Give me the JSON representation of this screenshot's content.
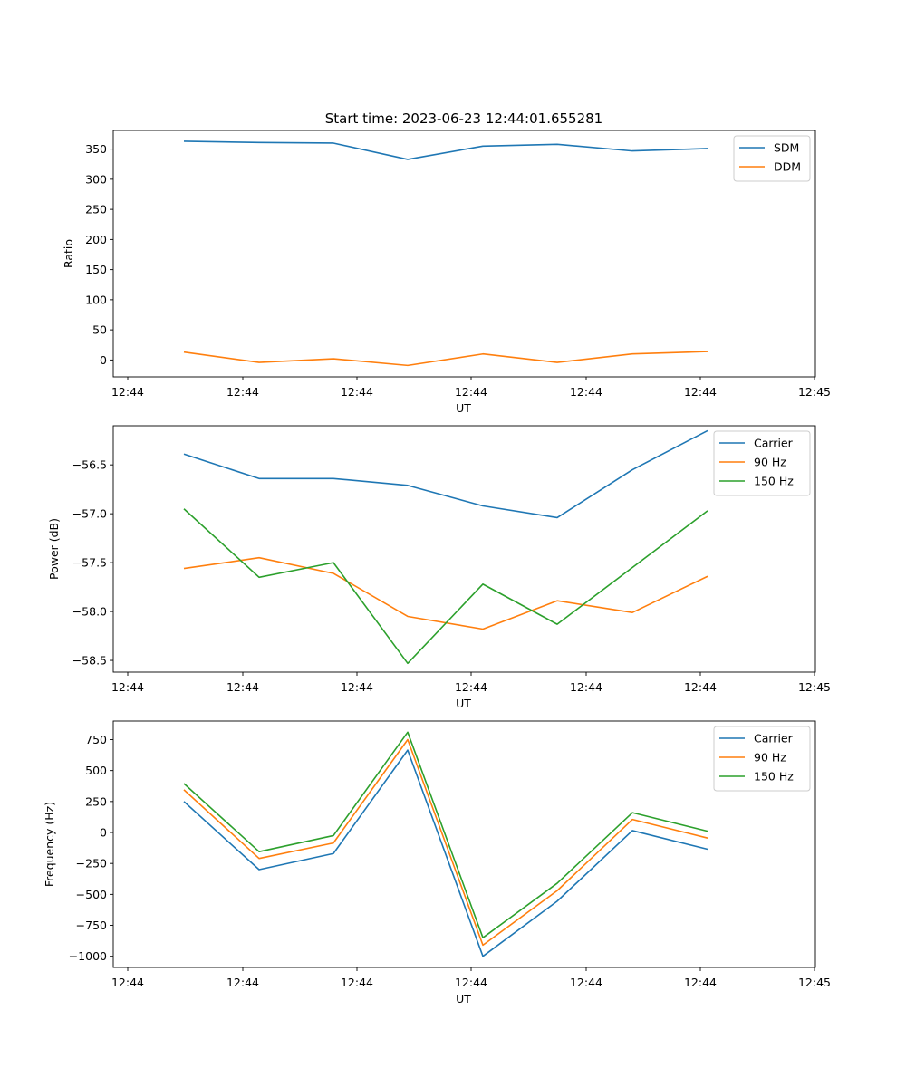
{
  "figure_title": "Start time: 2023-06-23 12:44:01.655281",
  "chart_data": [
    {
      "type": "line",
      "title": "Start time: 2023-06-23 12:44:01.655281",
      "xlabel": "UT",
      "ylabel": "Ratio",
      "x_tick_labels": [
        "12:44",
        "12:44",
        "12:44",
        "12:44",
        "12:44",
        "12:44",
        "12:45"
      ],
      "y_ticks": [
        0,
        50,
        100,
        150,
        200,
        250,
        300,
        350
      ],
      "ylim": [
        -28,
        381
      ],
      "legend_position": "upper-right",
      "series": [
        {
          "name": "SDM",
          "color": "#1f77b4",
          "values": [
            363,
            361,
            360,
            333,
            355,
            358,
            347,
            351
          ]
        },
        {
          "name": "DDM",
          "color": "#ff7f0e",
          "values": [
            13,
            -4,
            2,
            -9,
            10,
            -4,
            10,
            14
          ]
        }
      ]
    },
    {
      "type": "line",
      "xlabel": "UT",
      "ylabel": "Power (dB)",
      "x_tick_labels": [
        "12:44",
        "12:44",
        "12:44",
        "12:44",
        "12:44",
        "12:44",
        "12:45"
      ],
      "y_ticks": [
        -58.5,
        -58.0,
        -57.5,
        -57.0,
        -56.5
      ],
      "y_tick_labels": [
        "−58.5",
        "−58.0",
        "−57.5",
        "−57.0",
        "−56.5"
      ],
      "ylim": [
        -58.62,
        -56.1
      ],
      "legend_position": "upper-right",
      "series": [
        {
          "name": "Carrier",
          "color": "#1f77b4",
          "values": [
            -56.39,
            -56.64,
            -56.64,
            -56.71,
            -56.92,
            -57.04,
            -56.55,
            -56.15
          ]
        },
        {
          "name": "90 Hz",
          "color": "#ff7f0e",
          "values": [
            -57.56,
            -57.45,
            -57.61,
            -58.05,
            -58.18,
            -57.89,
            -58.01,
            -57.64
          ]
        },
        {
          "name": "150 Hz",
          "color": "#2ca02c",
          "values": [
            -56.95,
            -57.65,
            -57.5,
            -58.53,
            -57.72,
            -58.13,
            -57.55,
            -56.97
          ]
        }
      ]
    },
    {
      "type": "line",
      "xlabel": "UT",
      "ylabel": "Frequency (Hz)",
      "x_tick_labels": [
        "12:44",
        "12:44",
        "12:44",
        "12:44",
        "12:44",
        "12:44",
        "12:45"
      ],
      "y_ticks": [
        -1000,
        -750,
        -500,
        -250,
        0,
        250,
        500,
        750
      ],
      "y_tick_labels": [
        "−1000",
        "−750",
        "−500",
        "−250",
        "0",
        "250",
        "500",
        "750"
      ],
      "ylim": [
        -1090,
        900
      ],
      "legend_position": "upper-right",
      "series": [
        {
          "name": "Carrier",
          "color": "#1f77b4",
          "values": [
            250,
            -300,
            -170,
            665,
            -1000,
            -555,
            15,
            -135
          ]
        },
        {
          "name": "90 Hz",
          "color": "#ff7f0e",
          "values": [
            345,
            -210,
            -85,
            750,
            -910,
            -470,
            105,
            -45
          ]
        },
        {
          "name": "150 Hz",
          "color": "#2ca02c",
          "values": [
            395,
            -155,
            -25,
            810,
            -850,
            -410,
            160,
            10
          ]
        }
      ]
    }
  ]
}
